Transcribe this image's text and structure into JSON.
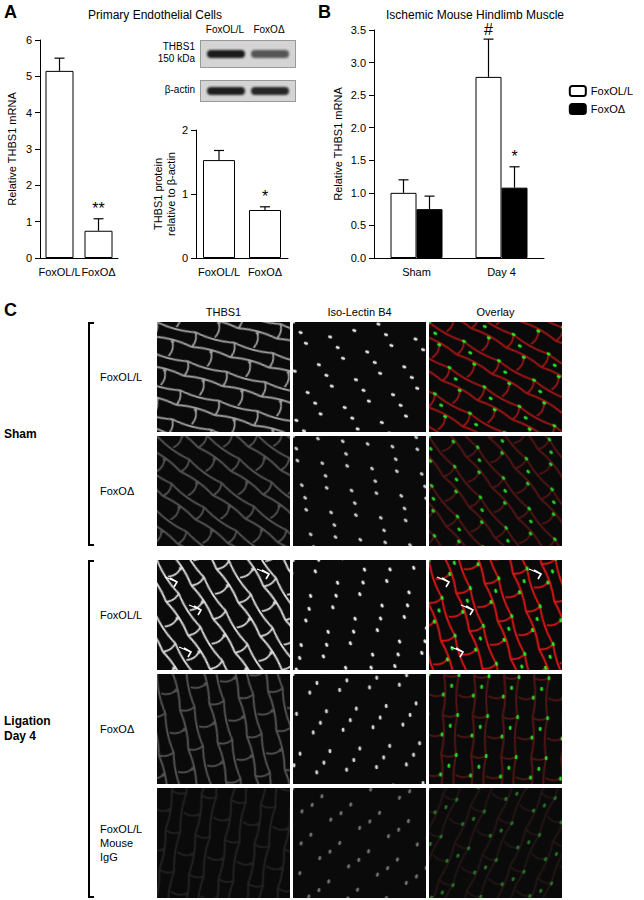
{
  "panel_labels": [
    "A",
    "B",
    "C"
  ],
  "chart_data": [
    {
      "type": "bar",
      "title": "Primary Endothelial Cells",
      "categories": [
        "FoxOL/L",
        "FoxOΔ"
      ],
      "values": [
        5.15,
        0.75
      ],
      "errors": [
        0.35,
        0.33
      ],
      "color": "#ffffff",
      "ylabel": "Relative THBS1 mRNA",
      "ylim": [
        0,
        6
      ],
      "yticks": [
        0,
        1,
        2,
        3,
        4,
        5,
        6
      ],
      "grid": false,
      "annotations": [
        {
          "category": "FoxOΔ",
          "text": "**"
        }
      ]
    },
    {
      "type": "bar",
      "categories": [
        "FoxOL/L",
        "FoxOΔ"
      ],
      "values": [
        1.53,
        0.75
      ],
      "errors": [
        0.15,
        0.05
      ],
      "color": "#ffffff",
      "ylabel": "THBS1 protein\nrelative to β-actin",
      "ylim": [
        0,
        2
      ],
      "yticks": [
        0,
        1,
        2
      ],
      "grid": false,
      "annotations": [
        {
          "category": "FoxOΔ",
          "text": "*"
        }
      ]
    },
    {
      "type": "bar",
      "title": "Ischemic Mouse Hindlimb Muscle",
      "categories": [
        "Sham",
        "Day 4"
      ],
      "series": [
        {
          "name": "FoxOL/L",
          "color": "#ffffff",
          "values": [
            1.0,
            2.78
          ],
          "errors": [
            0.2,
            0.58
          ]
        },
        {
          "name": "FoxOΔ",
          "color": "#000000",
          "values": [
            0.75,
            1.08
          ],
          "errors": [
            0.2,
            0.32
          ]
        }
      ],
      "ylabel": "Relative THBS1 mRNA",
      "ylim": [
        0,
        3.5
      ],
      "yticks": [
        {
          "value": 0,
          "label": "0.0"
        },
        {
          "value": 0.5,
          "label": "0.5"
        },
        {
          "value": 1,
          "label": "1.0"
        },
        {
          "value": 1.5,
          "label": "1.5"
        },
        {
          "value": 2,
          "label": "2.0"
        },
        {
          "value": 2.5,
          "label": "2.5"
        },
        {
          "value": 3,
          "label": "3.0"
        },
        {
          "value": 3.5,
          "label": "3.5"
        }
      ],
      "grid": false,
      "legend": "upper right",
      "annotations": [
        {
          "series": "FoxOL/L",
          "category": "Day 4",
          "text": "#"
        },
        {
          "series": "FoxOΔ",
          "category": "Day 4",
          "text": "*"
        }
      ]
    }
  ],
  "blot": {
    "lanes": [
      "FoxOL/L",
      "FoxOΔ"
    ],
    "bands": [
      {
        "name": "THBS1",
        "size": "150 kDa"
      },
      {
        "name": "β-actin"
      }
    ]
  },
  "panel_c": {
    "columns": [
      "THBS1",
      "Iso-Lectin B4",
      "Overlay"
    ],
    "groups": [
      {
        "label": "Sham",
        "rows": [
          "FoxOL/L",
          "FoxOΔ"
        ]
      },
      {
        "label": "Ligation Day 4",
        "rows": [
          "FoxOL/L",
          "FoxOΔ",
          "FoxOL/L\nMouse\nIgG"
        ]
      }
    ]
  }
}
